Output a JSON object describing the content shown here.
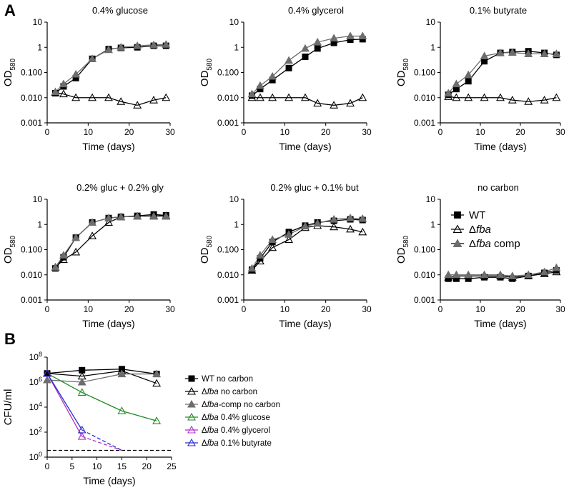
{
  "figure": {
    "panel_labels": [
      "A",
      "B"
    ],
    "legend_a": [
      {
        "label_main": "WT",
        "label_italic": "",
        "label_suffix": "",
        "marker": "square-black"
      },
      {
        "label_main": "Δ",
        "label_italic": "fba",
        "label_suffix": "",
        "marker": "triangle-open"
      },
      {
        "label_main": "Δ",
        "label_italic": "fba",
        "label_suffix": " comp",
        "marker": "triangle-gray"
      }
    ],
    "legend_b": [
      {
        "prefix": "WT no carbon",
        "italic": "",
        "suffix": "",
        "marker": "square",
        "color": "#000000",
        "fill": "#000000"
      },
      {
        "prefix": "Δ",
        "italic": "fba",
        "suffix": " no carbon",
        "marker": "triangle",
        "color": "#000000",
        "fill": "none"
      },
      {
        "prefix": "Δ",
        "italic": "fba",
        "suffix": "-comp no carbon",
        "marker": "triangle",
        "color": "#6d6d6d",
        "fill": "#6d6d6d"
      },
      {
        "prefix": "Δ",
        "italic": "fba",
        "suffix": " 0.4% glucose",
        "marker": "triangle",
        "color": "#1f8a1f",
        "fill": "none"
      },
      {
        "prefix": "Δ",
        "italic": "fba",
        "suffix": " 0.4% glycerol",
        "marker": "triangle",
        "color": "#b030c8",
        "fill": "none"
      },
      {
        "prefix": "Δ",
        "italic": "fba",
        "suffix": " 0.1% butyrate",
        "marker": "triangle",
        "color": "#2a2ad0",
        "fill": "none"
      }
    ]
  },
  "chart_data": [
    {
      "type": "line",
      "panel": "A1",
      "title": "0.4% glucose",
      "xlabel": "Time (days)",
      "ylabel": "OD",
      "ylabel_sub": "580",
      "yscale": "log",
      "xlim": [
        0,
        30
      ],
      "ylim": [
        0.001,
        10
      ],
      "xticks": [
        "0",
        "10",
        "20",
        "30"
      ],
      "yticks": [
        {
          "v": 0.001,
          "label": "0.001"
        },
        {
          "v": 0.01,
          "label": "0.010"
        },
        {
          "v": 0.1,
          "label": "0.100"
        },
        {
          "v": 1,
          "label": "1"
        },
        {
          "v": 10,
          "label": "10"
        }
      ],
      "series": [
        {
          "name": "WT",
          "marker": "square",
          "color": "#000000",
          "fill": "#000000",
          "dashed": false,
          "x": [
            2,
            4,
            7,
            11,
            15,
            18,
            22,
            26,
            29
          ],
          "y": [
            0.015,
            0.028,
            0.06,
            0.35,
            0.85,
            0.95,
            1.0,
            1.15,
            1.15
          ]
        },
        {
          "name": "Δfba",
          "marker": "triangle",
          "color": "#000000",
          "fill": "none",
          "dashed": false,
          "x": [
            2,
            4,
            7,
            11,
            15,
            18,
            22,
            26,
            29
          ],
          "y": [
            0.016,
            0.014,
            0.01,
            0.01,
            0.01,
            0.007,
            0.005,
            0.008,
            0.01
          ]
        },
        {
          "name": "Δfba comp",
          "marker": "triangle",
          "color": "#6d6d6d",
          "fill": "#6d6d6d",
          "dashed": false,
          "x": [
            2,
            4,
            7,
            11,
            15,
            18,
            22,
            26,
            29
          ],
          "y": [
            0.017,
            0.035,
            0.085,
            0.35,
            0.8,
            1.0,
            1.15,
            1.25,
            1.3
          ]
        }
      ]
    },
    {
      "type": "line",
      "panel": "A2",
      "title": "0.4% glycerol",
      "xlabel": "Time (days)",
      "ylabel": "OD",
      "ylabel_sub": "580",
      "yscale": "log",
      "xlim": [
        0,
        30
      ],
      "ylim": [
        0.001,
        10
      ],
      "xticks": [
        "0",
        "10",
        "20",
        "30"
      ],
      "yticks": [
        {
          "v": 0.001,
          "label": "0.001"
        },
        {
          "v": 0.01,
          "label": "0.010"
        },
        {
          "v": 0.1,
          "label": "0.100"
        },
        {
          "v": 1,
          "label": "1"
        },
        {
          "v": 10,
          "label": "10"
        }
      ],
      "series": [
        {
          "name": "WT",
          "marker": "square",
          "color": "#000000",
          "fill": "#000000",
          "dashed": false,
          "x": [
            2,
            4,
            7,
            11,
            15,
            18,
            22,
            26,
            29
          ],
          "y": [
            0.012,
            0.022,
            0.05,
            0.15,
            0.42,
            0.9,
            1.5,
            2.0,
            2.1
          ]
        },
        {
          "name": "Δfba",
          "marker": "triangle",
          "color": "#000000",
          "fill": "none",
          "dashed": false,
          "x": [
            2,
            4,
            7,
            11,
            15,
            18,
            22,
            26,
            29
          ],
          "y": [
            0.01,
            0.01,
            0.01,
            0.01,
            0.01,
            0.006,
            0.005,
            0.006,
            0.01
          ]
        },
        {
          "name": "Δfba comp",
          "marker": "triangle",
          "color": "#6d6d6d",
          "fill": "#6d6d6d",
          "dashed": false,
          "x": [
            2,
            4,
            7,
            11,
            15,
            18,
            22,
            26,
            29
          ],
          "y": [
            0.014,
            0.03,
            0.07,
            0.3,
            0.9,
            1.6,
            2.3,
            2.8,
            2.8
          ]
        }
      ]
    },
    {
      "type": "line",
      "panel": "A3",
      "title": "0.1% butyrate",
      "xlabel": "Time (days)",
      "ylabel": "OD",
      "ylabel_sub": "580",
      "yscale": "log",
      "xlim": [
        0,
        30
      ],
      "ylim": [
        0.001,
        10
      ],
      "xticks": [
        "0",
        "10",
        "20",
        "30"
      ],
      "yticks": [
        {
          "v": 0.001,
          "label": "0.001"
        },
        {
          "v": 0.01,
          "label": "0.010"
        },
        {
          "v": 0.1,
          "label": "0.100"
        },
        {
          "v": 1,
          "label": "1"
        },
        {
          "v": 10,
          "label": "10"
        }
      ],
      "series": [
        {
          "name": "WT",
          "marker": "square",
          "color": "#000000",
          "fill": "#000000",
          "dashed": false,
          "x": [
            2,
            4,
            7,
            11,
            15,
            18,
            22,
            26,
            29
          ],
          "y": [
            0.013,
            0.022,
            0.045,
            0.28,
            0.6,
            0.65,
            0.7,
            0.6,
            0.5
          ]
        },
        {
          "name": "Δfba",
          "marker": "triangle",
          "color": "#000000",
          "fill": "none",
          "dashed": false,
          "x": [
            2,
            4,
            7,
            11,
            15,
            18,
            22,
            26,
            29
          ],
          "y": [
            0.011,
            0.01,
            0.01,
            0.01,
            0.01,
            0.008,
            0.007,
            0.008,
            0.01
          ]
        },
        {
          "name": "Δfba comp",
          "marker": "triangle",
          "color": "#6d6d6d",
          "fill": "#6d6d6d",
          "dashed": false,
          "x": [
            2,
            4,
            7,
            11,
            15,
            18,
            22,
            26,
            29
          ],
          "y": [
            0.015,
            0.035,
            0.08,
            0.45,
            0.6,
            0.62,
            0.55,
            0.55,
            0.55
          ]
        }
      ]
    },
    {
      "type": "line",
      "panel": "A4",
      "title": "0.2% gluc + 0.2% gly",
      "xlabel": "Time (days)",
      "ylabel": "OD",
      "ylabel_sub": "580",
      "yscale": "log",
      "xlim": [
        0,
        30
      ],
      "ylim": [
        0.001,
        10
      ],
      "xticks": [
        "0",
        "10",
        "20",
        "30"
      ],
      "yticks": [
        {
          "v": 0.001,
          "label": "0.001"
        },
        {
          "v": 0.01,
          "label": "0.010"
        },
        {
          "v": 0.1,
          "label": "0.100"
        },
        {
          "v": 1,
          "label": "1"
        },
        {
          "v": 10,
          "label": "10"
        }
      ],
      "series": [
        {
          "name": "WT",
          "marker": "square",
          "color": "#000000",
          "fill": "#000000",
          "dashed": false,
          "x": [
            2,
            4,
            7,
            11,
            15,
            18,
            22,
            26,
            29
          ],
          "y": [
            0.018,
            0.05,
            0.3,
            1.2,
            1.8,
            2.0,
            2.2,
            2.5,
            2.3
          ]
        },
        {
          "name": "Δfba",
          "marker": "triangle",
          "color": "#000000",
          "fill": "none",
          "dashed": false,
          "x": [
            2,
            4,
            7,
            11,
            15,
            18,
            22,
            26,
            29
          ],
          "y": [
            0.02,
            0.04,
            0.08,
            0.35,
            1.2,
            2.0,
            2.1,
            2.2,
            2.2
          ]
        },
        {
          "name": "Δfba comp",
          "marker": "triangle",
          "color": "#6d6d6d",
          "fill": "#6d6d6d",
          "dashed": false,
          "x": [
            2,
            4,
            7,
            11,
            15,
            18,
            22,
            26,
            29
          ],
          "y": [
            0.02,
            0.06,
            0.3,
            1.2,
            1.8,
            2.0,
            2.1,
            2.1,
            2.1
          ]
        }
      ]
    },
    {
      "type": "line",
      "panel": "A5",
      "title": "0.2% gluc + 0.1% but",
      "xlabel": "Time (days)",
      "ylabel": "OD",
      "ylabel_sub": "580",
      "yscale": "log",
      "xlim": [
        0,
        30
      ],
      "ylim": [
        0.001,
        10
      ],
      "xticks": [
        "0",
        "10",
        "20",
        "30"
      ],
      "yticks": [
        {
          "v": 0.001,
          "label": "0.001"
        },
        {
          "v": 0.01,
          "label": "0.010"
        },
        {
          "v": 0.1,
          "label": "0.100"
        },
        {
          "v": 1,
          "label": "1"
        },
        {
          "v": 10,
          "label": "10"
        }
      ],
      "series": [
        {
          "name": "WT",
          "marker": "square",
          "color": "#000000",
          "fill": "#000000",
          "dashed": false,
          "x": [
            2,
            4,
            7,
            11,
            15,
            18,
            22,
            26,
            29
          ],
          "y": [
            0.016,
            0.045,
            0.2,
            0.5,
            0.9,
            1.2,
            1.4,
            1.6,
            1.5
          ]
        },
        {
          "name": "Δfba",
          "marker": "triangle",
          "color": "#000000",
          "fill": "none",
          "dashed": false,
          "x": [
            2,
            4,
            7,
            11,
            15,
            18,
            22,
            26,
            29
          ],
          "y": [
            0.015,
            0.035,
            0.12,
            0.25,
            0.75,
            0.9,
            0.8,
            0.65,
            0.5
          ]
        },
        {
          "name": "Δfba comp",
          "marker": "triangle",
          "color": "#6d6d6d",
          "fill": "#6d6d6d",
          "dashed": false,
          "x": [
            2,
            4,
            7,
            11,
            15,
            18,
            22,
            26,
            29
          ],
          "y": [
            0.018,
            0.06,
            0.25,
            0.4,
            0.85,
            1.1,
            1.6,
            1.8,
            1.7
          ]
        }
      ]
    },
    {
      "type": "line",
      "panel": "A6",
      "title": "no carbon",
      "xlabel": "Time (days)",
      "ylabel": "OD",
      "ylabel_sub": "580",
      "yscale": "log",
      "xlim": [
        0,
        30
      ],
      "ylim": [
        0.001,
        10
      ],
      "xticks": [
        "0",
        "10",
        "20",
        "30"
      ],
      "yticks": [
        {
          "v": 0.001,
          "label": "0.001"
        },
        {
          "v": 0.01,
          "label": "0.010"
        },
        {
          "v": 0.1,
          "label": "0.100"
        },
        {
          "v": 1,
          "label": "1"
        },
        {
          "v": 10,
          "label": "10"
        }
      ],
      "series": [
        {
          "name": "WT",
          "marker": "square",
          "color": "#000000",
          "fill": "#000000",
          "dashed": false,
          "x": [
            2,
            4,
            7,
            11,
            15,
            18,
            22,
            26,
            29
          ],
          "y": [
            0.007,
            0.007,
            0.007,
            0.008,
            0.008,
            0.007,
            0.009,
            0.012,
            0.015
          ]
        },
        {
          "name": "Δfba",
          "marker": "triangle",
          "color": "#000000",
          "fill": "none",
          "dashed": false,
          "x": [
            2,
            4,
            7,
            11,
            15,
            18,
            22,
            26,
            29
          ],
          "y": [
            0.008,
            0.009,
            0.009,
            0.009,
            0.009,
            0.008,
            0.009,
            0.011,
            0.013
          ]
        },
        {
          "name": "Δfba comp",
          "marker": "triangle",
          "color": "#6d6d6d",
          "fill": "#6d6d6d",
          "dashed": false,
          "x": [
            2,
            4,
            7,
            11,
            15,
            18,
            22,
            26,
            29
          ],
          "y": [
            0.01,
            0.01,
            0.01,
            0.01,
            0.01,
            0.009,
            0.01,
            0.013,
            0.019
          ]
        }
      ]
    },
    {
      "type": "line",
      "panel": "B",
      "title": "",
      "xlabel": "Time (days)",
      "ylabel": "CFU/ml",
      "ylabel_sub": "",
      "yscale": "log",
      "xlim": [
        0,
        25
      ],
      "ylim": [
        1,
        100000000
      ],
      "xticks": [
        "0",
        "5",
        "10",
        "15",
        "20",
        "25"
      ],
      "yticks": [
        {
          "v": 1,
          "base": "10",
          "exp": "0"
        },
        {
          "v": 100,
          "base": "10",
          "exp": "2"
        },
        {
          "v": 10000,
          "base": "10",
          "exp": "4"
        },
        {
          "v": 1000000,
          "base": "10",
          "exp": "6"
        },
        {
          "v": 100000000,
          "base": "10",
          "exp": "8"
        }
      ],
      "detection_limit": 3.5,
      "series": [
        {
          "name": "WT no carbon",
          "marker": "square",
          "color": "#000000",
          "fill": "#000000",
          "dashed": false,
          "x": [
            0,
            7,
            15,
            22
          ],
          "y": [
            5000000,
            9000000,
            11000000,
            4500000
          ]
        },
        {
          "name": "Δfba no carbon",
          "marker": "triangle",
          "color": "#000000",
          "fill": "none",
          "dashed": false,
          "x": [
            0,
            7,
            15,
            22
          ],
          "y": [
            5000000,
            3000000,
            8000000,
            800000
          ]
        },
        {
          "name": "Δfba-comp no carbon",
          "marker": "triangle",
          "color": "#6d6d6d",
          "fill": "#6d6d6d",
          "dashed": false,
          "x": [
            0,
            7,
            15,
            22
          ],
          "y": [
            1500000,
            1000000,
            4500000,
            4500000
          ]
        },
        {
          "name": "Δfba 0.4% glucose",
          "marker": "triangle",
          "color": "#1f8a1f",
          "fill": "none",
          "dashed": false,
          "x": [
            0,
            7,
            15,
            22
          ],
          "y": [
            5000000,
            150000,
            5000,
            800
          ]
        },
        {
          "name": "Δfba 0.4% glycerol",
          "marker": "triangle",
          "color": "#b030c8",
          "fill": "none",
          "dashed": false,
          "x": [
            0,
            7
          ],
          "y": [
            5000000,
            45
          ]
        },
        {
          "name": "Δfba 0.4% glycerol (below detection)",
          "marker": "none",
          "color": "#b030c8",
          "fill": "none",
          "dashed": true,
          "x": [
            7,
            15
          ],
          "y": [
            45,
            3.5
          ]
        },
        {
          "name": "Δfba 0.1% butyrate",
          "marker": "triangle",
          "color": "#2a2ad0",
          "fill": "none",
          "dashed": false,
          "x": [
            0,
            7
          ],
          "y": [
            5000000,
            150
          ]
        },
        {
          "name": "Δfba 0.1% butyrate (below detection)",
          "marker": "none",
          "color": "#2a2ad0",
          "fill": "none",
          "dashed": true,
          "x": [
            7,
            15
          ],
          "y": [
            150,
            3.5
          ]
        }
      ]
    }
  ]
}
